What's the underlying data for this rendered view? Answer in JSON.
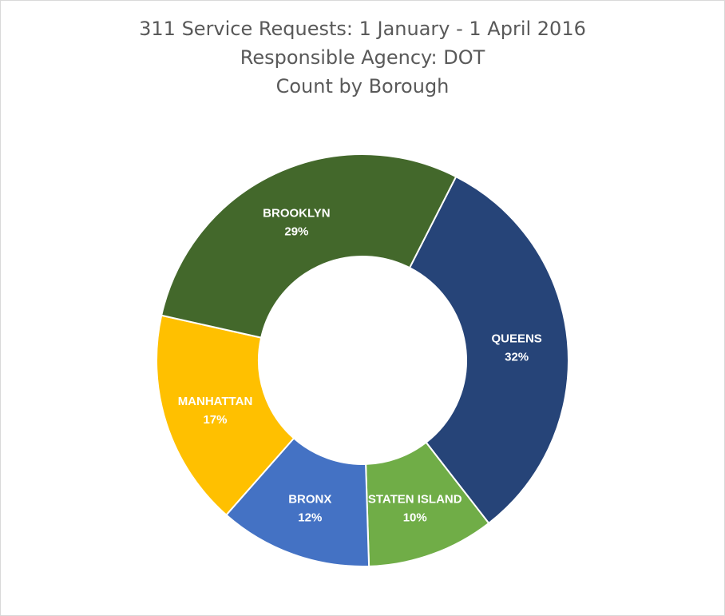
{
  "chart_data": {
    "type": "pie",
    "style": "donut",
    "title_lines": [
      "311 Service Requests: 1 January - 1 April 2016",
      "Responsible Agency: DOT",
      "Count by Borough"
    ],
    "slices": [
      {
        "label": "QUEENS",
        "value": 32,
        "value_label": "32%",
        "color": "#264478"
      },
      {
        "label": "STATEN ISLAND",
        "value": 10,
        "value_label": "10%",
        "color": "#70AD47"
      },
      {
        "label": "BRONX",
        "value": 12,
        "value_label": "12%",
        "color": "#4472C4"
      },
      {
        "label": "MANHATTAN",
        "value": 17,
        "value_label": "17%",
        "color": "#FFC000"
      },
      {
        "label": "BROOKLYN",
        "value": 29,
        "value_label": "29%",
        "color": "#43682B"
      }
    ],
    "legend": false
  }
}
